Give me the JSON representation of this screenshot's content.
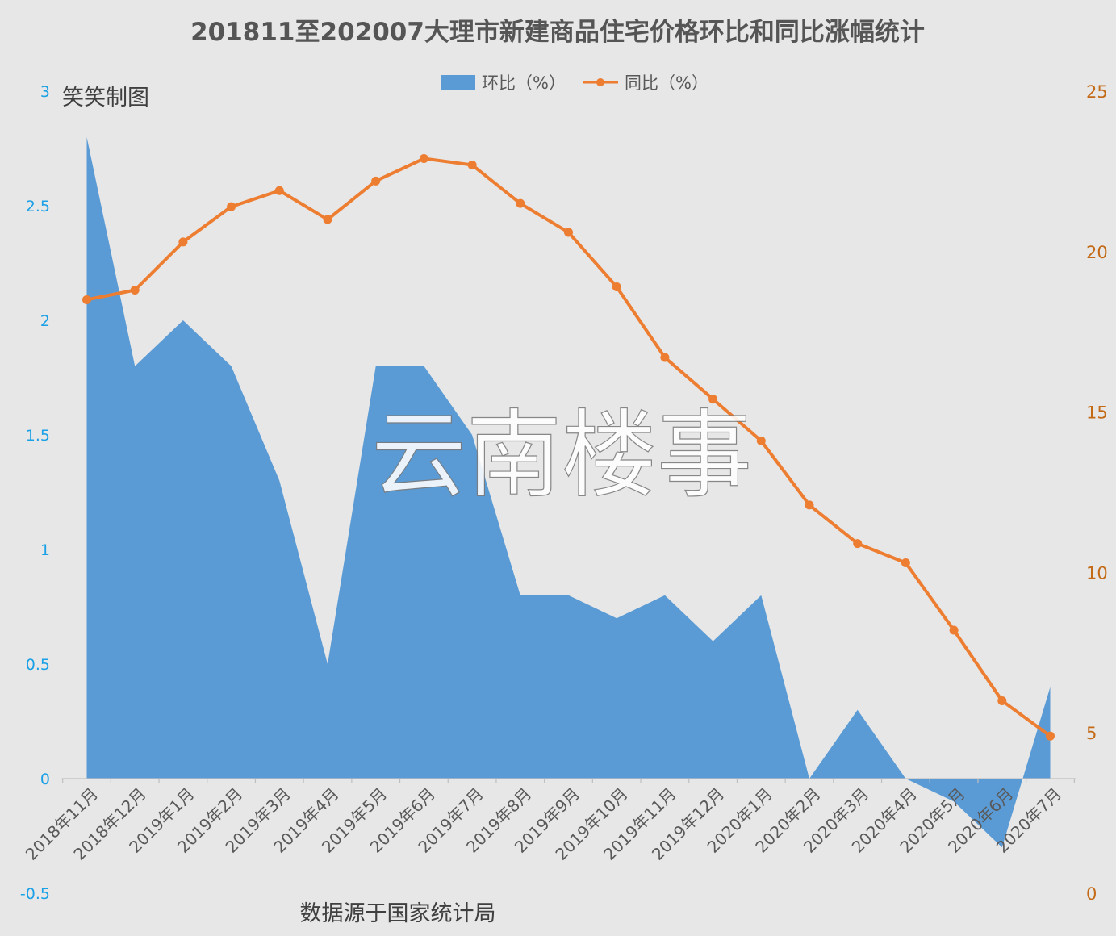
{
  "chart_data": {
    "type": "area+line",
    "title": "201811至202007大理市新建商品住宅价格环比和同比涨幅统计",
    "annotation_top_left": "笑笑制图",
    "source_note": "数据源于国家统计局",
    "watermark": "云南楼事",
    "categories": [
      "2018年11月",
      "2018年12月",
      "2019年1月",
      "2019年2月",
      "2019年3月",
      "2019年4月",
      "2019年5月",
      "2019年6月",
      "2019年7月",
      "2019年8月",
      "2019年9月",
      "2019年10月",
      "2019年11月",
      "2019年12月",
      "2020年1月",
      "2020年2月",
      "2020年3月",
      "2020年4月",
      "2020年5月",
      "2020年6月",
      "2020年7月"
    ],
    "series": [
      {
        "name": "环比（%）",
        "type": "area",
        "axis": "left",
        "color": "#5b9bd5",
        "values": [
          2.8,
          1.8,
          2.0,
          1.8,
          1.3,
          0.5,
          1.8,
          1.8,
          1.5,
          0.8,
          0.8,
          0.7,
          0.8,
          0.6,
          0.8,
          0.0,
          0.3,
          0.0,
          -0.1,
          -0.3,
          0.4
        ]
      },
      {
        "name": "同比（%）",
        "type": "line",
        "axis": "right",
        "color": "#ed7d31",
        "values": [
          18.5,
          18.8,
          20.3,
          21.4,
          21.9,
          21.0,
          22.2,
          22.9,
          22.7,
          21.5,
          20.6,
          18.9,
          16.7,
          15.4,
          14.1,
          12.1,
          10.9,
          10.3,
          8.2,
          6.0,
          4.9
        ]
      }
    ],
    "y_left": {
      "min": -0.5,
      "max": 3,
      "ticks": [
        "-0.5",
        "0",
        "0.5",
        "1",
        "1.5",
        "2",
        "2.5",
        "3"
      ],
      "color": "#1aa0e6"
    },
    "y_right": {
      "min": 0,
      "max": 25,
      "ticks": [
        "0",
        "5",
        "10",
        "15",
        "20",
        "25"
      ],
      "color": "#c46a16"
    },
    "legend": "top-center",
    "grid": false
  }
}
